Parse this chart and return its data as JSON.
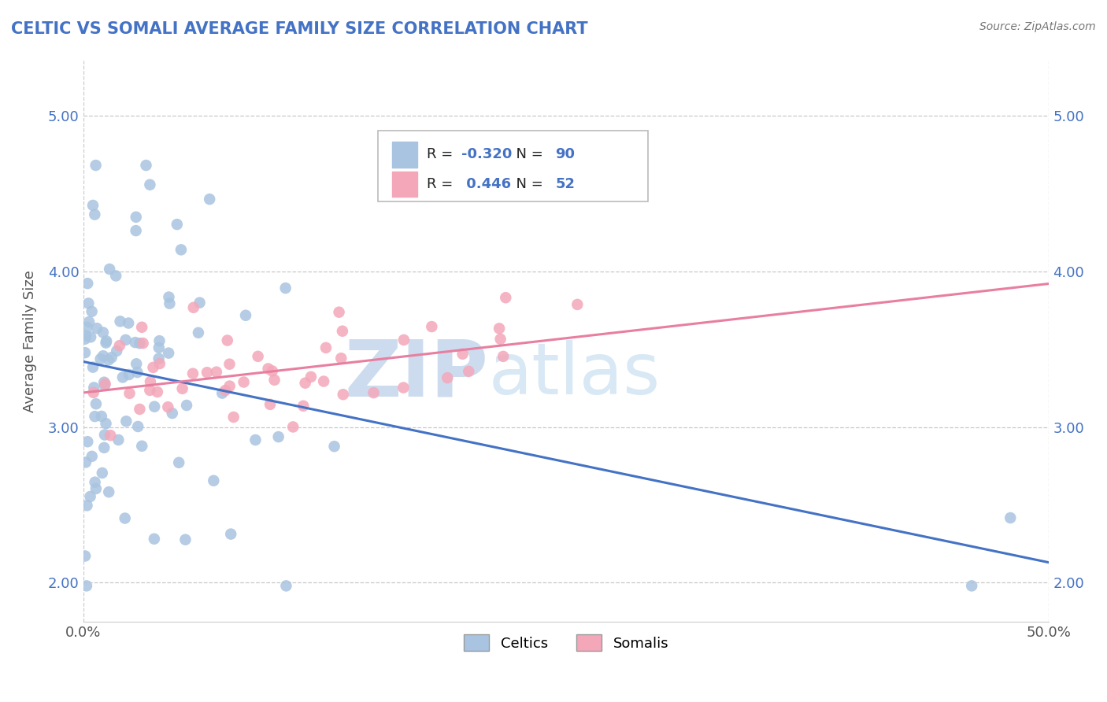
{
  "title": "CELTIC VS SOMALI AVERAGE FAMILY SIZE CORRELATION CHART",
  "source": "Source: ZipAtlas.com",
  "ylabel": "Average Family Size",
  "xlim": [
    0.0,
    0.5
  ],
  "ylim": [
    1.75,
    5.35
  ],
  "yticks": [
    2.0,
    3.0,
    4.0,
    5.0
  ],
  "xticks": [
    0.0,
    0.5
  ],
  "xtick_labels": [
    "0.0%",
    "50.0%"
  ],
  "ytick_labels": [
    "2.00",
    "3.00",
    "4.00",
    "5.00"
  ],
  "celtic_color": "#a8c4e0",
  "somali_color": "#f4a7b9",
  "celtic_line_color": "#4472c4",
  "somali_line_color": "#e87fa0",
  "celtic_R": -0.32,
  "celtic_N": 90,
  "somali_R": 0.446,
  "somali_N": 52,
  "legend_celtics": "Celtics",
  "legend_somalis": "Somalis",
  "background_color": "#ffffff",
  "grid_color": "#c8c8c8",
  "title_color": "#4472c4",
  "watermark_zip_color": "#ccdcee",
  "watermark_atlas_color": "#d8e8f4",
  "celtic_line_y0": 3.42,
  "celtic_line_y1": 2.13,
  "somali_line_y0": 3.22,
  "somali_line_y1": 3.92
}
